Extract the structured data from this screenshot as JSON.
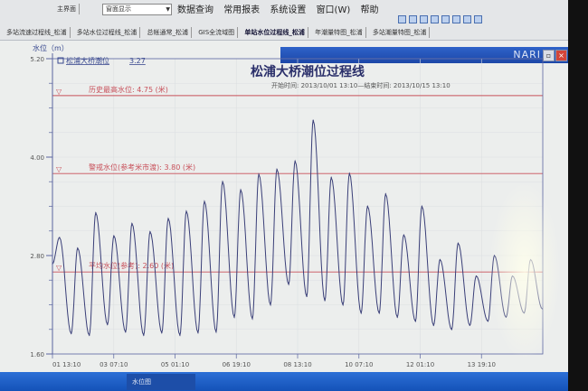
{
  "window": {
    "menu": [
      "数据查询",
      "常用报表",
      "系统设置",
      "窗口(W)",
      "帮助"
    ],
    "combo_value": "窗面显示",
    "brand": "NARI",
    "tabs": [
      "主界面",
      "多站流速过程线_松浦",
      "多站水位过程线_松浦",
      "总帐通常_松浦",
      "GIS全流域图",
      "单站水位过程线_松浦",
      "年潮量特图_松浦",
      "多站潮量特图_松浦"
    ],
    "active_tab": 5,
    "taskbar_item": "水位图"
  },
  "chart_data": {
    "type": "line",
    "title": "松浦大桥潮位过程线",
    "subtitle": "开始时间: 2013/10/01 13:10—结束时间: 2013/10/15 13:10",
    "ylabel": "水位（m）",
    "ylim": [
      1.6,
      5.2
    ],
    "yticks": [
      "5.20",
      "4.00",
      "2.80",
      "1.60"
    ],
    "xrange": [
      "01 13:10",
      "15 13:10"
    ],
    "xticks": [
      "01 13:10",
      "03 07:10",
      "05 01:10",
      "06 19:10",
      "08 13:10",
      "10 07:10",
      "12 01:10",
      "13 19:10"
    ],
    "grid": true,
    "legend": {
      "position": "top-left",
      "label": "松浦大桥潮位",
      "current_value": "3.27"
    },
    "series": [
      {
        "name": "松浦大桥潮位",
        "color": "#3a3f78",
        "points": [
          [
            "01 13:10",
            2.7
          ],
          [
            "01 18:00",
            3.02
          ],
          [
            "02 02:00",
            1.85
          ],
          [
            "02 06:25",
            2.89
          ],
          [
            "02 14:25",
            1.83
          ],
          [
            "02 18:50",
            3.32
          ],
          [
            "03 02:50",
            1.96
          ],
          [
            "03 07:15",
            3.04
          ],
          [
            "03 15:15",
            1.87
          ],
          [
            "03 19:40",
            3.19
          ],
          [
            "04 03:40",
            1.83
          ],
          [
            "04 08:05",
            3.09
          ],
          [
            "04 16:05",
            1.86
          ],
          [
            "04 20:30",
            3.25
          ],
          [
            "05 04:30",
            1.83
          ],
          [
            "05 08:55",
            3.34
          ],
          [
            "05 16:55",
            1.86
          ],
          [
            "05 21:20",
            3.46
          ],
          [
            "06 05:20",
            1.87
          ],
          [
            "06 09:45",
            3.7
          ],
          [
            "06 17:45",
            2.05
          ],
          [
            "06 22:10",
            3.6
          ],
          [
            "07 06:10",
            2.03
          ],
          [
            "07 10:35",
            3.79
          ],
          [
            "07 18:35",
            2.2
          ],
          [
            "07 23:00",
            3.85
          ],
          [
            "08 07:00",
            2.45
          ],
          [
            "08 11:25",
            3.95
          ],
          [
            "08 19:25",
            2.3
          ],
          [
            "08 23:50",
            4.45
          ],
          [
            "09 07:50",
            2.25
          ],
          [
            "09 12:15",
            3.75
          ],
          [
            "09 20:15",
            2.2
          ],
          [
            "10 00:40",
            3.8
          ],
          [
            "10 08:40",
            2.1
          ],
          [
            "10 13:05",
            3.4
          ],
          [
            "10 21:05",
            2.1
          ],
          [
            "11 01:30",
            3.55
          ],
          [
            "11 09:30",
            2.05
          ],
          [
            "11 13:55",
            3.05
          ],
          [
            "11 21:55",
            2.0
          ],
          [
            "12 02:20",
            3.4
          ],
          [
            "12 10:20",
            1.95
          ],
          [
            "12 14:45",
            2.75
          ],
          [
            "12 22:45",
            1.9
          ],
          [
            "13 03:10",
            2.95
          ],
          [
            "13 11:10",
            1.95
          ],
          [
            "13 15:35",
            2.55
          ],
          [
            "13 23:35",
            2.0
          ],
          [
            "14 04:00",
            2.8
          ],
          [
            "14 12:00",
            2.05
          ],
          [
            "14 16:25",
            2.55
          ],
          [
            "15 00:25",
            2.1
          ],
          [
            "15 04:50",
            2.75
          ],
          [
            "15 12:50",
            2.15
          ]
        ]
      }
    ],
    "reference_lines": [
      {
        "value": 4.75,
        "label": "历史最高水位: 4.75 (米)",
        "color": "#c8505a"
      },
      {
        "value": 3.8,
        "label": "警戒水位(参考米市渡): 3.80 (米)",
        "color": "#c8505a"
      },
      {
        "value": 2.6,
        "label": "平均水位(参考): 2.60 (米)",
        "color": "#c8505a"
      }
    ]
  }
}
